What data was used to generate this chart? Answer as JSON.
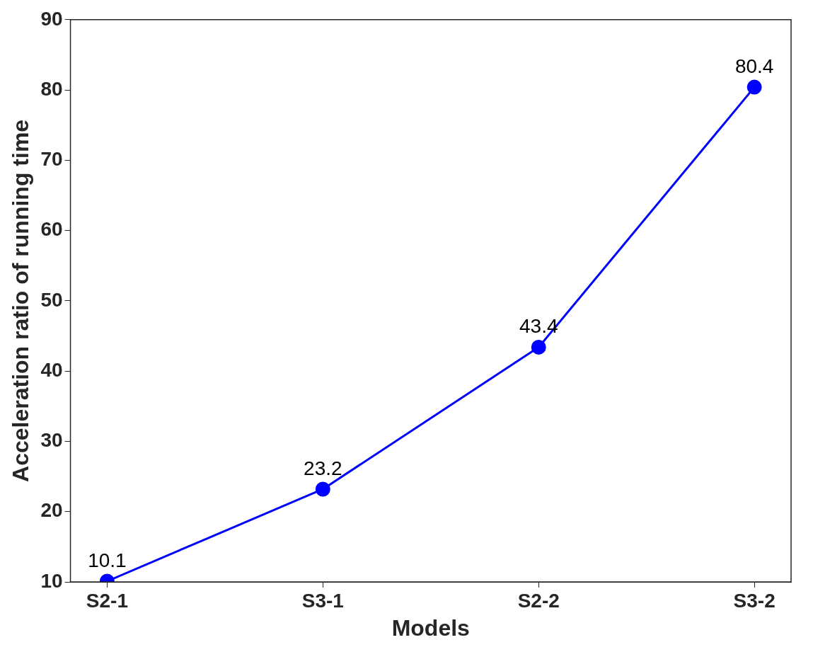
{
  "chart_data": {
    "type": "line",
    "xlabel": "Models",
    "ylabel": "Acceleration ratio of running time",
    "categories": [
      "S2-1",
      "S3-1",
      "S2-2",
      "S3-2"
    ],
    "series": [
      {
        "color": "#0000ff",
        "values": [
          10.1,
          23.2,
          43.4,
          80.4
        ]
      }
    ],
    "ylim": [
      10,
      90
    ],
    "yticks": [
      10,
      20,
      30,
      40,
      50,
      60,
      70,
      80,
      90
    ],
    "data_labels": true,
    "marker": "circle",
    "line_style": "solid",
    "grid": false,
    "legend": false
  }
}
